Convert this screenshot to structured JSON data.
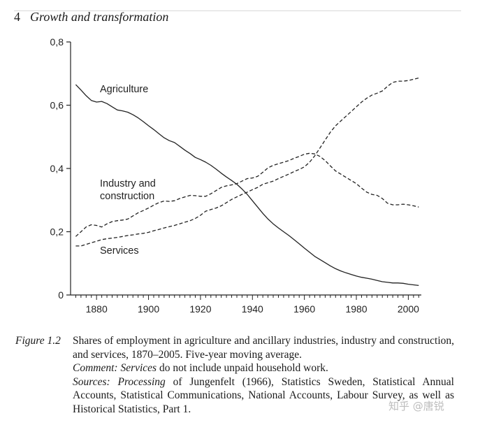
{
  "header": {
    "page_number": "4",
    "title": "Growth and transformation"
  },
  "chart_data": {
    "type": "line",
    "title": "",
    "xlabel": "",
    "ylabel": "",
    "xlim": [
      1870,
      2005
    ],
    "ylim": [
      0,
      0.8
    ],
    "xticks": [
      1880,
      1900,
      1920,
      1940,
      1960,
      1980,
      2000
    ],
    "yticks": [
      0,
      0.2,
      0.4,
      0.6,
      0.8
    ],
    "ytick_labels": [
      "0",
      "0,2",
      "0,4",
      "0,6",
      "0,8"
    ],
    "grid": false,
    "legend": "none",
    "series": [
      {
        "name": "Agriculture",
        "style": "solid",
        "x": [
          1872,
          1874,
          1876,
          1878,
          1880,
          1882,
          1884,
          1886,
          1888,
          1890,
          1892,
          1894,
          1896,
          1898,
          1900,
          1902,
          1904,
          1906,
          1908,
          1910,
          1912,
          1914,
          1916,
          1918,
          1920,
          1922,
          1924,
          1926,
          1928,
          1930,
          1932,
          1934,
          1936,
          1938,
          1940,
          1942,
          1944,
          1946,
          1948,
          1950,
          1952,
          1954,
          1956,
          1958,
          1960,
          1962,
          1964,
          1966,
          1968,
          1970,
          1972,
          1974,
          1976,
          1978,
          1980,
          1982,
          1984,
          1986,
          1988,
          1990,
          1992,
          1994,
          1996,
          1998,
          2000,
          2002,
          2004
        ],
        "y": [
          0.665,
          0.648,
          0.63,
          0.615,
          0.61,
          0.612,
          0.605,
          0.595,
          0.585,
          0.582,
          0.578,
          0.57,
          0.56,
          0.548,
          0.535,
          0.523,
          0.51,
          0.497,
          0.488,
          0.482,
          0.47,
          0.458,
          0.447,
          0.435,
          0.428,
          0.42,
          0.41,
          0.398,
          0.385,
          0.373,
          0.362,
          0.35,
          0.335,
          0.318,
          0.298,
          0.278,
          0.258,
          0.24,
          0.225,
          0.212,
          0.2,
          0.188,
          0.175,
          0.162,
          0.148,
          0.135,
          0.122,
          0.112,
          0.102,
          0.092,
          0.083,
          0.076,
          0.07,
          0.065,
          0.06,
          0.056,
          0.053,
          0.05,
          0.046,
          0.042,
          0.04,
          0.038,
          0.038,
          0.037,
          0.034,
          0.032,
          0.03
        ]
      },
      {
        "name": "Industry and construction",
        "style": "dashed",
        "x": [
          1872,
          1874,
          1876,
          1878,
          1880,
          1882,
          1884,
          1886,
          1888,
          1890,
          1892,
          1894,
          1896,
          1898,
          1900,
          1902,
          1904,
          1906,
          1908,
          1910,
          1912,
          1914,
          1916,
          1918,
          1920,
          1922,
          1924,
          1926,
          1928,
          1930,
          1932,
          1934,
          1936,
          1938,
          1940,
          1942,
          1944,
          1946,
          1948,
          1950,
          1952,
          1954,
          1956,
          1958,
          1960,
          1962,
          1964,
          1966,
          1968,
          1970,
          1972,
          1974,
          1976,
          1978,
          1980,
          1982,
          1984,
          1986,
          1988,
          1990,
          1992,
          1994,
          1996,
          1998,
          2000,
          2002,
          2004
        ],
        "y": [
          0.185,
          0.2,
          0.215,
          0.222,
          0.22,
          0.215,
          0.225,
          0.232,
          0.235,
          0.237,
          0.24,
          0.25,
          0.26,
          0.267,
          0.275,
          0.284,
          0.292,
          0.297,
          0.296,
          0.298,
          0.305,
          0.31,
          0.315,
          0.314,
          0.312,
          0.312,
          0.32,
          0.33,
          0.34,
          0.345,
          0.348,
          0.352,
          0.36,
          0.368,
          0.37,
          0.375,
          0.388,
          0.402,
          0.41,
          0.415,
          0.42,
          0.425,
          0.432,
          0.438,
          0.445,
          0.448,
          0.446,
          0.438,
          0.425,
          0.408,
          0.392,
          0.382,
          0.372,
          0.362,
          0.352,
          0.338,
          0.325,
          0.318,
          0.315,
          0.305,
          0.29,
          0.285,
          0.285,
          0.287,
          0.285,
          0.282,
          0.278
        ]
      },
      {
        "name": "Services",
        "style": "dashed",
        "x": [
          1872,
          1874,
          1876,
          1878,
          1880,
          1882,
          1884,
          1886,
          1888,
          1890,
          1892,
          1894,
          1896,
          1898,
          1900,
          1902,
          1904,
          1906,
          1908,
          1910,
          1912,
          1914,
          1916,
          1918,
          1920,
          1922,
          1924,
          1926,
          1928,
          1930,
          1932,
          1934,
          1936,
          1938,
          1940,
          1942,
          1944,
          1946,
          1948,
          1950,
          1952,
          1954,
          1956,
          1958,
          1960,
          1962,
          1964,
          1966,
          1968,
          1970,
          1972,
          1974,
          1976,
          1978,
          1980,
          1982,
          1984,
          1986,
          1988,
          1990,
          1992,
          1994,
          1996,
          1998,
          2000,
          2002,
          2004
        ],
        "y": [
          0.155,
          0.155,
          0.16,
          0.165,
          0.17,
          0.175,
          0.178,
          0.18,
          0.182,
          0.185,
          0.188,
          0.19,
          0.193,
          0.195,
          0.198,
          0.203,
          0.207,
          0.212,
          0.216,
          0.22,
          0.225,
          0.23,
          0.235,
          0.242,
          0.252,
          0.265,
          0.27,
          0.275,
          0.282,
          0.292,
          0.302,
          0.31,
          0.318,
          0.325,
          0.333,
          0.34,
          0.35,
          0.355,
          0.36,
          0.368,
          0.375,
          0.382,
          0.39,
          0.397,
          0.405,
          0.42,
          0.44,
          0.465,
          0.49,
          0.515,
          0.535,
          0.55,
          0.565,
          0.58,
          0.595,
          0.61,
          0.622,
          0.632,
          0.638,
          0.645,
          0.66,
          0.672,
          0.676,
          0.676,
          0.678,
          0.682,
          0.686
        ]
      }
    ],
    "annotations": [
      {
        "text": "Agriculture"
      },
      {
        "text": "Industry and\nconstruction"
      },
      {
        "text": "Services"
      }
    ]
  },
  "caption": {
    "figure_label": "Figure 1.2",
    "text": "Shares of employment in agriculture and ancillary industries, industry and construction, and services, 1870–2005. Five-year moving average.",
    "comment_label": "Comment:",
    "comment_term": "Services",
    "comment_text": " do not include unpaid household work.",
    "sources_label": "Sources:",
    "sources_term": "Processing",
    "sources_text": " of Jungenfelt (1966), Statistics Sweden, Statistical Annual Accounts, Statistical Communications, National Accounts, Labour Survey, as well as Historical Statistics, Part 1."
  },
  "watermark": "知乎 @唐锐"
}
